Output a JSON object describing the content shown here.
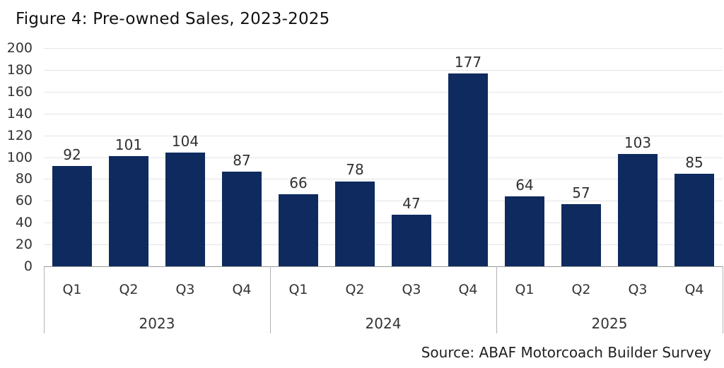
{
  "figure": {
    "title": "Figure 4: Pre-owned Sales, 2023-2025",
    "source_note": "Source: ABAF Motorcoach Builder Survey"
  },
  "chart_data": {
    "type": "bar",
    "title": "Figure 4: Pre-owned Sales, 2023-2025",
    "categories": [
      "Q1",
      "Q2",
      "Q3",
      "Q4"
    ],
    "groups": [
      {
        "year": "2023",
        "values": [
          92,
          101,
          104,
          87
        ]
      },
      {
        "year": "2024",
        "values": [
          66,
          78,
          47,
          177
        ]
      },
      {
        "year": "2025",
        "values": [
          64,
          57,
          103,
          85
        ]
      }
    ],
    "y_ticks": [
      0,
      20,
      40,
      60,
      80,
      100,
      120,
      140,
      160,
      180,
      200
    ],
    "ylim": [
      0,
      200
    ],
    "xlabel": "",
    "ylabel": "",
    "grid": true,
    "legend_position": "none",
    "data_labels": true,
    "colors": {
      "bar": "#0e2a5e",
      "gridline": "#e4e4e4",
      "axis_line": "#999999",
      "divider": "#b3b3b3",
      "tick_text": "#333333",
      "value_text": "#303030",
      "title_text": "#111111",
      "source_text": "#1f1f1f"
    }
  }
}
